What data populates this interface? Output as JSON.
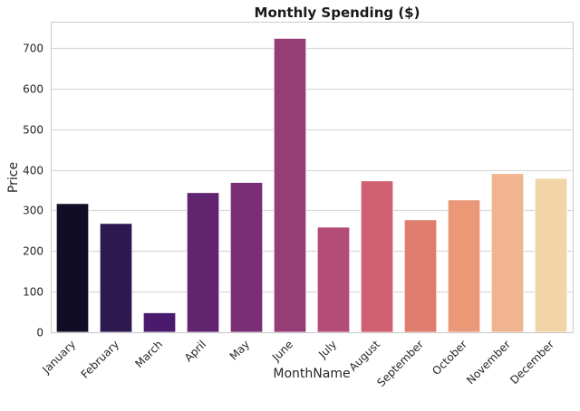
{
  "chart_data": {
    "type": "bar",
    "title": "Monthly Spending ($)",
    "xlabel": "MonthName",
    "ylabel": "Price",
    "categories": [
      "January",
      "February",
      "March",
      "April",
      "May",
      "June",
      "July",
      "August",
      "September",
      "October",
      "November",
      "December"
    ],
    "values": [
      317,
      268,
      48,
      344,
      369,
      724,
      259,
      373,
      277,
      326,
      391,
      379
    ],
    "colors": [
      "#110d26",
      "#2d1850",
      "#4a1a6d",
      "#612570",
      "#7a2f75",
      "#963d78",
      "#b34c77",
      "#d06070",
      "#e07c6c",
      "#ea9877",
      "#f0b58e",
      "#f2d5a6"
    ],
    "ylim": [
      0,
      765
    ],
    "yticks": [
      0,
      100,
      200,
      300,
      400,
      500,
      600,
      700
    ],
    "grid": true
  }
}
